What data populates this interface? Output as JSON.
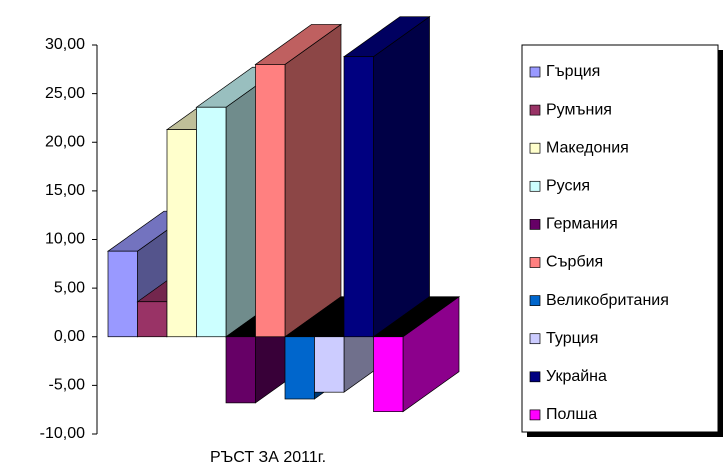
{
  "chart_data": {
    "type": "bar",
    "categories": [
      "РЪСТ ЗА 2011г."
    ],
    "series": [
      {
        "name": "Гърция",
        "color": "#9999ff",
        "values": [
          8.8
        ]
      },
      {
        "name": "Румъния",
        "color": "#993366",
        "values": [
          3.6
        ]
      },
      {
        "name": "Македония",
        "color": "#ffffcc",
        "values": [
          21.3
        ]
      },
      {
        "name": "Русия",
        "color": "#ccffff",
        "values": [
          23.6
        ]
      },
      {
        "name": "Германия",
        "color": "#660066",
        "values": [
          -6.8
        ]
      },
      {
        "name": "Сърбия",
        "color": "#ff8080",
        "values": [
          28.0
        ]
      },
      {
        "name": "Великобритания",
        "color": "#0066cc",
        "values": [
          -6.4
        ]
      },
      {
        "name": "Турция",
        "color": "#ccccff",
        "values": [
          -5.7
        ]
      },
      {
        "name": "Украйна",
        "color": "#000080",
        "values": [
          28.8
        ]
      },
      {
        "name": "Полша",
        "color": "#ff00ff",
        "values": [
          -7.7
        ]
      }
    ],
    "ylim": [
      -10,
      30
    ],
    "yticks": [
      {
        "value": -10,
        "label": "-10,00"
      },
      {
        "value": -5,
        "label": "-5,00"
      },
      {
        "value": 0,
        "label": "0,00"
      },
      {
        "value": 5,
        "label": "5,00"
      },
      {
        "value": 10,
        "label": "10,00"
      },
      {
        "value": 15,
        "label": "15,00"
      },
      {
        "value": 20,
        "label": "20,00"
      },
      {
        "value": 25,
        "label": "25,00"
      },
      {
        "value": 30,
        "label": "30,00"
      }
    ],
    "legend": "right"
  }
}
